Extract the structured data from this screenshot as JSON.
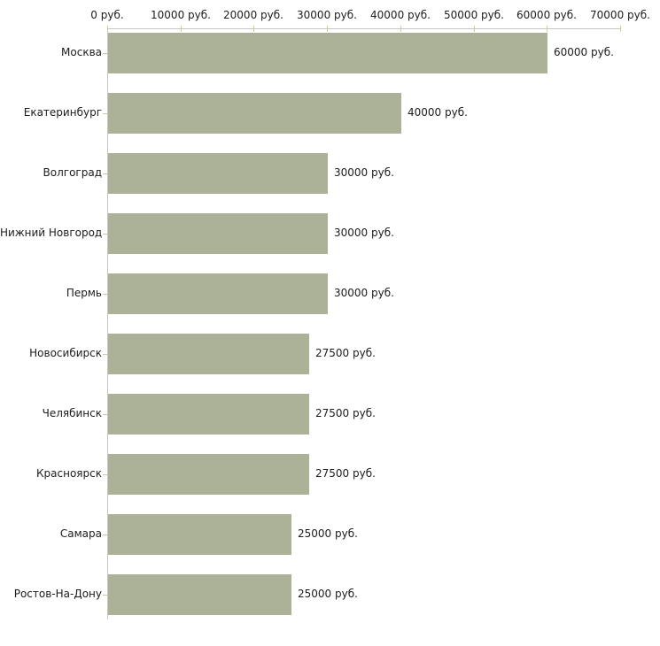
{
  "chart_data": {
    "type": "bar",
    "orientation": "horizontal",
    "title": "",
    "xlabel": "",
    "ylabel": "",
    "xlim": [
      0,
      70000
    ],
    "grid": false,
    "legend": false,
    "unit": "руб.",
    "categories": [
      "Москва",
      "Екатеринбург",
      "Волгоград",
      "Нижний Новгород",
      "Пермь",
      "Новосибирск",
      "Челябинск",
      "Красноярск",
      "Самара",
      "Ростов-На-Дону"
    ],
    "values": [
      60000,
      40000,
      30000,
      30000,
      30000,
      27500,
      27500,
      27500,
      25000,
      25000
    ],
    "value_labels": [
      "60000 руб.",
      "40000 руб.",
      "30000 руб.",
      "30000 руб.",
      "30000 руб.",
      "27500 руб.",
      "27500 руб.",
      "27500 руб.",
      "25000 руб.",
      "25000 руб."
    ],
    "x_axis": {
      "ticks": [
        0,
        10000,
        20000,
        30000,
        40000,
        50000,
        60000,
        70000
      ],
      "tick_labels": [
        "0 руб.",
        "10000 руб.",
        "20000 руб.",
        "30000 руб.",
        "40000 руб.",
        "50000 руб.",
        "60000 руб.",
        "70000 руб."
      ]
    },
    "colors": {
      "bar": "#acb298",
      "axis_line": "#c6c6c6",
      "tick": "#cccc99",
      "text": "#1c1c1c",
      "background": "#ffffff"
    }
  }
}
